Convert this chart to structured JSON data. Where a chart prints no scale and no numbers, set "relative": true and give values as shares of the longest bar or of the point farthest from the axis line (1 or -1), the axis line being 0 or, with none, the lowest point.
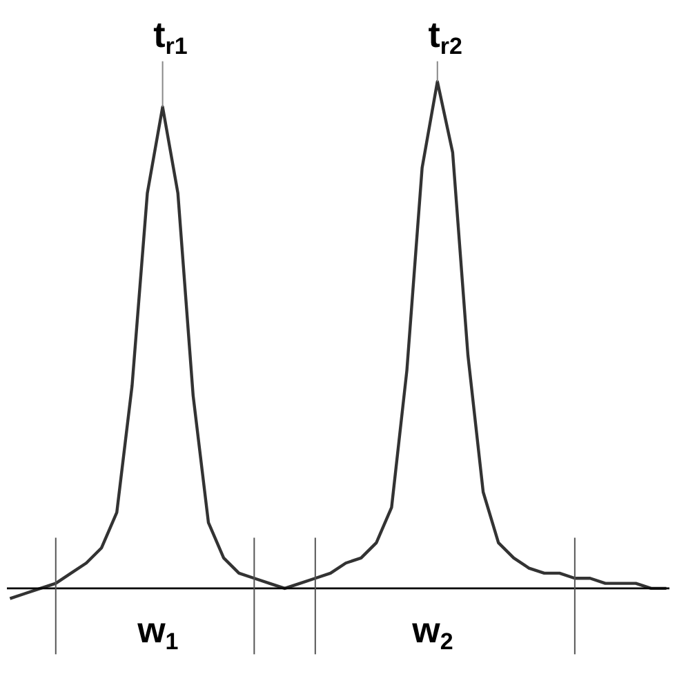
{
  "chart_data": {
    "type": "line",
    "relative": true,
    "color": "#333333",
    "marker": "none",
    "line_style": "solid",
    "categories": [
      null,
      null,
      null,
      null,
      null,
      null,
      null,
      null,
      null,
      null,
      null,
      null,
      null,
      null,
      null,
      null,
      null,
      null,
      null,
      null,
      null,
      null,
      null,
      null,
      null,
      null,
      null,
      null,
      null,
      null,
      null,
      null,
      null,
      null,
      null,
      null,
      null,
      null,
      null,
      null,
      null,
      null,
      null,
      null
    ],
    "values": [
      -0.02,
      -0.01,
      0.0,
      0.01,
      0.03,
      0.05,
      0.08,
      0.15,
      0.4,
      0.78,
      0.95,
      0.78,
      0.38,
      0.13,
      0.06,
      0.03,
      0.02,
      0.01,
      0,
      0.01,
      0.02,
      0.03,
      0.05,
      0.06,
      0.09,
      0.16,
      0.43,
      0.83,
      1,
      0.86,
      0.46,
      0.19,
      0.09,
      0.06,
      0.04,
      0.03,
      0.03,
      0.02,
      0.02,
      0.01,
      0.01,
      0.01,
      0,
      0
    ],
    "annotations": [
      "t$_{r1}$",
      "t$_{r2}$",
      "w$_{1}$",
      "w$_{2}$"
    ]
  }
}
